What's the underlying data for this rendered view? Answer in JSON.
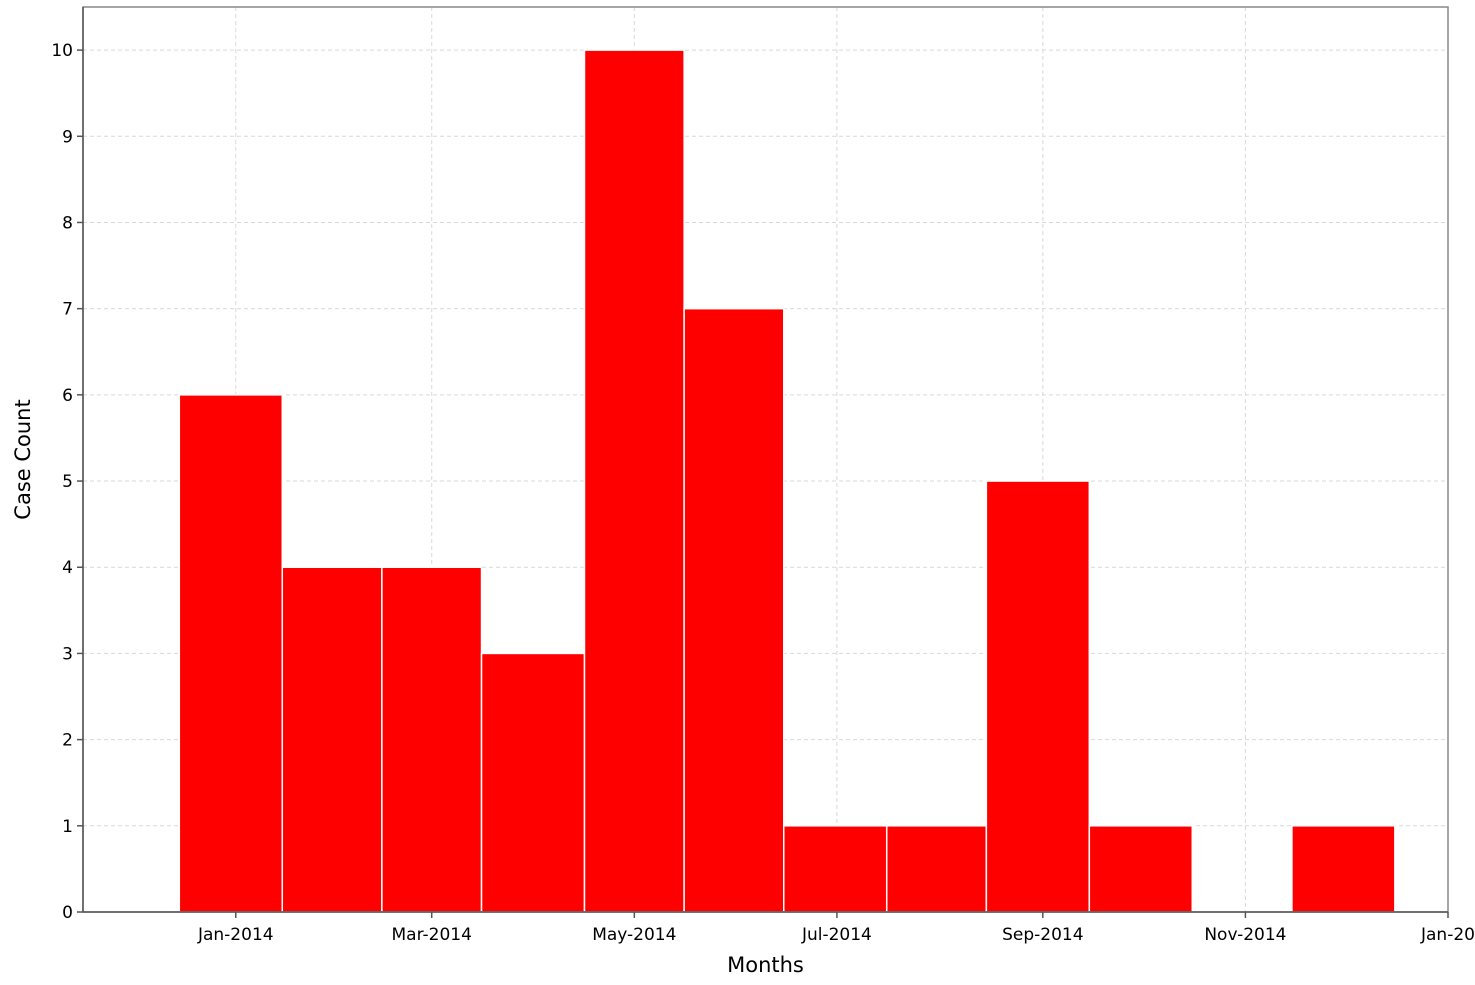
{
  "chart_data": {
    "type": "bar",
    "title": "",
    "xlabel": "Months",
    "ylabel": "Case Count",
    "x_axis": "date",
    "bars": [
      {
        "start": "2013-12-15",
        "end": "2014-01-15",
        "value": 6
      },
      {
        "start": "2014-01-15",
        "end": "2014-02-14",
        "value": 4
      },
      {
        "start": "2014-02-14",
        "end": "2014-03-16",
        "value": 4
      },
      {
        "start": "2014-03-16",
        "end": "2014-04-16",
        "value": 3
      },
      {
        "start": "2014-04-16",
        "end": "2014-05-16",
        "value": 10
      },
      {
        "start": "2014-05-16",
        "end": "2014-06-15",
        "value": 7
      },
      {
        "start": "2014-06-15",
        "end": "2014-07-16",
        "value": 1
      },
      {
        "start": "2014-07-16",
        "end": "2014-08-15",
        "value": 1
      },
      {
        "start": "2014-08-15",
        "end": "2014-09-15",
        "value": 5
      },
      {
        "start": "2014-09-15",
        "end": "2014-10-16",
        "value": 1
      },
      {
        "start": "2014-10-16",
        "end": "2014-11-15",
        "value": 0
      },
      {
        "start": "2014-11-15",
        "end": "2014-12-16",
        "value": 1
      }
    ],
    "x_ticks": [
      {
        "date": "2014-01-01",
        "label": "Jan-2014"
      },
      {
        "date": "2014-03-01",
        "label": "Mar-2014"
      },
      {
        "date": "2014-05-01",
        "label": "May-2014"
      },
      {
        "date": "2014-07-01",
        "label": "Jul-2014"
      },
      {
        "date": "2014-09-01",
        "label": "Sep-2014"
      },
      {
        "date": "2014-11-01",
        "label": "Nov-2014"
      },
      {
        "date": "2015-01-01",
        "label": "Jan-20"
      }
    ],
    "xlim": [
      "2013-11-16",
      "2015-01-01"
    ],
    "y_ticks": [
      0,
      1,
      2,
      3,
      4,
      5,
      6,
      7,
      8,
      9,
      10
    ],
    "ylim": [
      0,
      10.5
    ],
    "grid": true,
    "bar_color": "#ff0000",
    "bar_edge_color": "#ffffff",
    "grid_color": "#d9d9d9",
    "axis_color": "#555555"
  }
}
